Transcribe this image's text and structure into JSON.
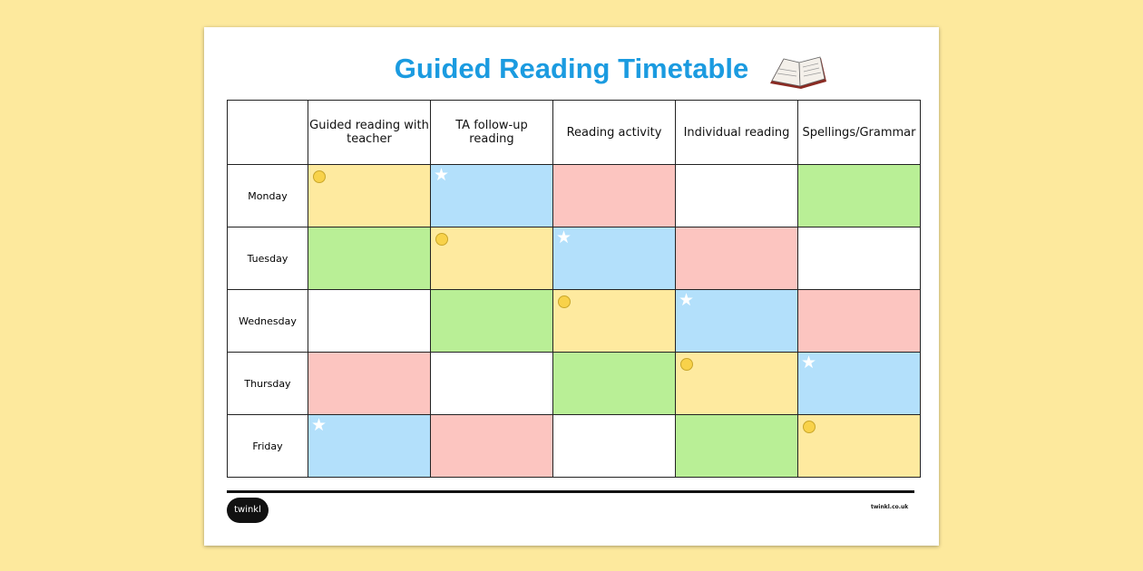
{
  "title": "Guided Reading Timetable",
  "columns": [
    "",
    "Guided reading with teacher",
    "TA follow-up reading",
    "Reading activity",
    "Individual reading",
    "Spellings/Grammar"
  ],
  "rows": [
    {
      "day": "Monday",
      "cells": [
        "yellow-circle",
        "blue-star",
        "red",
        "white",
        "green"
      ]
    },
    {
      "day": "Tuesday",
      "cells": [
        "green",
        "yellow-circle",
        "blue-star",
        "red",
        "white"
      ]
    },
    {
      "day": "Wednesday",
      "cells": [
        "white",
        "green",
        "yellow-circle",
        "blue-star",
        "red"
      ]
    },
    {
      "day": "Thursday",
      "cells": [
        "red",
        "white",
        "green",
        "yellow-circle",
        "blue-star"
      ]
    },
    {
      "day": "Friday",
      "cells": [
        "blue-star",
        "red",
        "white",
        "green",
        "yellow-circle"
      ]
    }
  ],
  "colors": {
    "yellow": "#feea9f",
    "blue": "#b3e0fb",
    "red": "#fcc5c0",
    "green": "#b9ef96",
    "white": "#ffffff",
    "title": "#1b9be0",
    "background": "#fde99d"
  },
  "footer": {
    "logo": "twinkl",
    "url": "twinkl.co.uk"
  }
}
